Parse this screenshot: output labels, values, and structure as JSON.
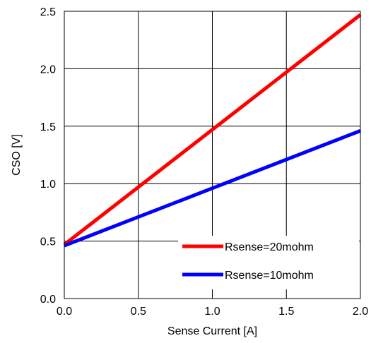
{
  "chart_data": {
    "type": "line",
    "title": "",
    "xlabel": "Sense Current [A]",
    "ylabel": "CSO [V]",
    "xlim": [
      0.0,
      2.0
    ],
    "ylim": [
      0.0,
      2.5
    ],
    "xticks": [
      "0.0",
      "0.5",
      "1.0",
      "1.5",
      "2.0"
    ],
    "yticks": [
      "0.0",
      "0.5",
      "1.0",
      "1.5",
      "2.0",
      "2.5"
    ],
    "grid": true,
    "legend_position": "bottom-right",
    "series": [
      {
        "name": "Rsense=20mohm",
        "color": "#ff0000",
        "x": [
          0.0,
          2.0
        ],
        "y": [
          0.47,
          2.47
        ]
      },
      {
        "name": "Rsense=10mohm",
        "color": "#0000ff",
        "x": [
          0.0,
          2.0
        ],
        "y": [
          0.46,
          1.46
        ]
      }
    ]
  }
}
